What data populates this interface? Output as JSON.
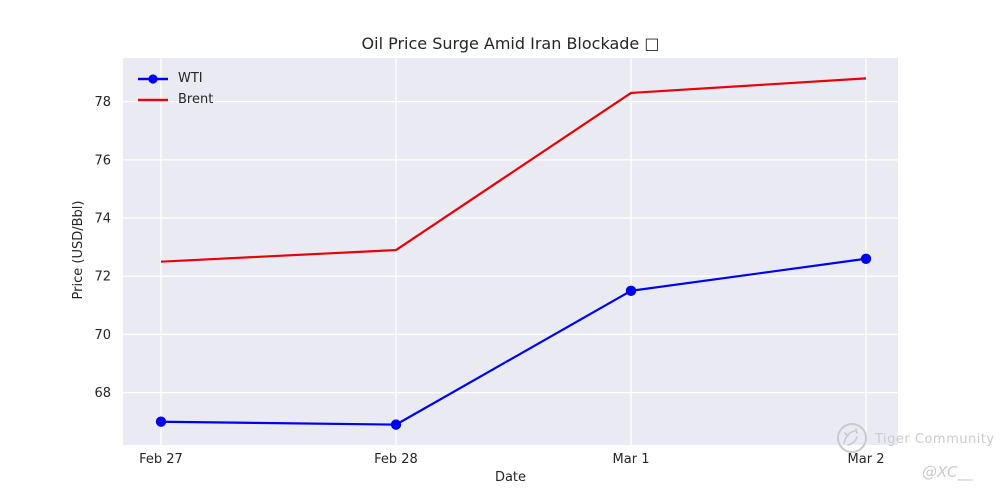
{
  "chart_data": {
    "type": "line",
    "title": "Oil Price Surge Amid Iran Blockade □",
    "xlabel": "Date",
    "ylabel": "Price (USD/Bbl)",
    "categories": [
      "Feb 27",
      "Feb 28",
      "Mar 1",
      "Mar 2"
    ],
    "series": [
      {
        "name": "WTI",
        "color": "#0000f0",
        "marker": "circle",
        "values": [
          67.0,
          66.9,
          71.5,
          72.6
        ]
      },
      {
        "name": "Brent",
        "color": "#e8000b",
        "marker": "none",
        "values": [
          72.5,
          72.9,
          78.3,
          78.8
        ]
      }
    ],
    "yticks": [
      68,
      70,
      72,
      74,
      76,
      78
    ],
    "ylim": [
      66.2,
      79.5
    ],
    "grid": true,
    "legend_position": "upper left",
    "plot_bg": "#eaeaf2",
    "grid_color": "#ffffff",
    "tick_color": "#262626"
  },
  "watermark": {
    "brand": "Tiger Community",
    "handle": "@XC__",
    "logo": "tiger-logo",
    "color": "#c9c9ce"
  }
}
